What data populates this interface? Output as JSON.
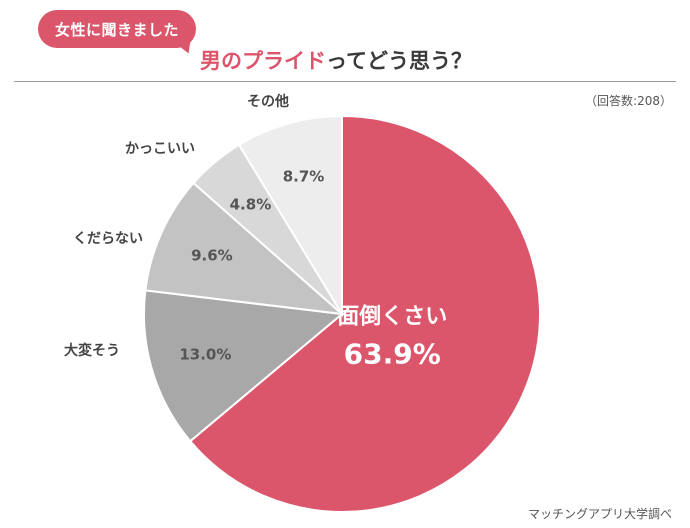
{
  "header": {
    "badge": "女性に聞きました",
    "title_accent": "男のプライド",
    "title_rest": "ってどう思う？",
    "respondents": "（回答数:208）",
    "source": "マッチングアプリ大学調べ"
  },
  "chart_data": {
    "type": "pie",
    "title": "男のプライドってどう思う？",
    "categories": [
      "面倒くさい",
      "大変そう",
      "くだらない",
      "かっこいい",
      "その他"
    ],
    "values": [
      63.9,
      13.0,
      9.6,
      4.8,
      8.7
    ],
    "value_labels": [
      "63.9%",
      "13.0%",
      "9.6%",
      "4.8%",
      "8.7%"
    ],
    "colors": [
      "#db566b",
      "#a8a8a8",
      "#c3c3c3",
      "#d8d8d8",
      "#ededed"
    ],
    "start": "12 o'clock, clockwise"
  }
}
